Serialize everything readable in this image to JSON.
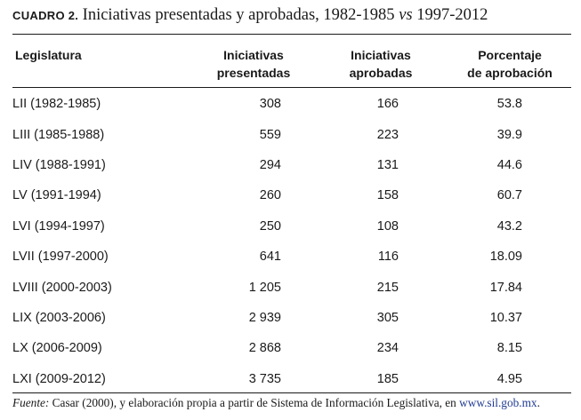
{
  "table_title": {
    "label": "CUADRO 2.",
    "text_start": "Iniciativas presentadas y aprobadas, 1982-1985",
    "text_italic": "vs",
    "text_end": "1997-2012"
  },
  "headers": {
    "legislatura": "Legislatura",
    "presentadas_line1": "Iniciativas",
    "presentadas_line2": "presentadas",
    "aprobadas_line1": "Iniciativas",
    "aprobadas_line2": "aprobadas",
    "porcentaje_line1": "Porcentaje",
    "porcentaje_line2": "de aprobación"
  },
  "rows": [
    {
      "legislatura": "LII (1982-1985)",
      "presentadas": "308",
      "aprobadas": "166",
      "porcentaje": "53.8"
    },
    {
      "legislatura": "LIII (1985-1988)",
      "presentadas": "559",
      "aprobadas": "223",
      "porcentaje": "39.9"
    },
    {
      "legislatura": "LIV (1988-1991)",
      "presentadas": "294",
      "aprobadas": "131",
      "porcentaje": "44.6"
    },
    {
      "legislatura": "LV (1991-1994)",
      "presentadas": "260",
      "aprobadas": "158",
      "porcentaje": "60.7"
    },
    {
      "legislatura": "LVI (1994-1997)",
      "presentadas": "250",
      "aprobadas": "108",
      "porcentaje": "43.2"
    },
    {
      "legislatura": "LVII (1997-2000)",
      "presentadas": "641",
      "aprobadas": "116",
      "porcentaje": "18.09"
    },
    {
      "legislatura": "LVIII (2000-2003)",
      "presentadas": "1 205",
      "aprobadas": "215",
      "porcentaje": "17.84"
    },
    {
      "legislatura": "LIX (2003-2006)",
      "presentadas": "2 939",
      "aprobadas": "305",
      "porcentaje": "10.37"
    },
    {
      "legislatura": "LX (2006-2009)",
      "presentadas": "2 868",
      "aprobadas": "234",
      "porcentaje": "8.15"
    },
    {
      "legislatura": "LXI (2009-2012)",
      "presentadas": "3 735",
      "aprobadas": "185",
      "porcentaje": "4.95"
    }
  ],
  "source": {
    "label": "Fuente:",
    "text": " Casar (2000), y elaboración propia a partir de Sistema de Información Legislativa, en ",
    "link": "www.sil.gob.mx",
    "end": "."
  },
  "colors": {
    "link": "#1f3a93",
    "text": "#1a1a1a"
  }
}
